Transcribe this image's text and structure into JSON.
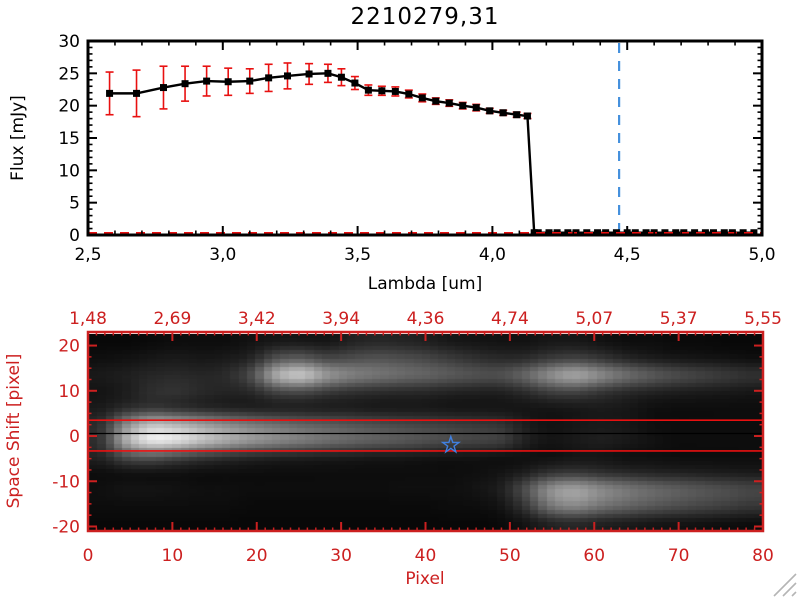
{
  "window": {
    "background": "#ffffff",
    "has_resize_grip": true
  },
  "colors": {
    "axis_black": "#000000",
    "axis_red": "#cc2020",
    "error_red": "#e81010",
    "dashed_red": "#e81010",
    "dashed_blue": "#4490dd",
    "star_blue": "#4080e0",
    "grip_gray": "#b5b5b5"
  },
  "chart_data": [
    {
      "type": "line",
      "title": "2210279,31",
      "xlabel": "Lambda [um]",
      "ylabel": "Flux [mJy]",
      "xlim": [
        2.5,
        5.0
      ],
      "ylim": [
        0,
        30
      ],
      "x_tick_labels": [
        "2,5",
        "3,0",
        "3,5",
        "4,0",
        "4,5",
        "5,0"
      ],
      "x_tick_values": [
        2.5,
        3.0,
        3.5,
        4.0,
        4.5,
        5.0
      ],
      "x_minor_step": 0.1,
      "y_tick_labels": [
        "0",
        "5",
        "10",
        "15",
        "20",
        "25",
        "30"
      ],
      "y_tick_values": [
        0,
        5,
        10,
        15,
        20,
        25,
        30
      ],
      "y_minor_step": 1,
      "grid": "off",
      "series": [
        {
          "name": "spectrum",
          "marker": "filled-square",
          "color": "#000000",
          "error_color": "#e81010",
          "x": [
            2.58,
            2.68,
            2.78,
            2.86,
            2.94,
            3.02,
            3.1,
            3.17,
            3.24,
            3.32,
            3.39,
            3.44,
            3.49,
            3.54,
            3.59,
            3.64,
            3.69,
            3.74,
            3.79,
            3.84,
            3.89,
            3.94,
            3.99,
            4.04,
            4.09,
            4.13,
            4.155,
            4.17,
            4.21,
            4.24,
            4.28,
            4.31,
            4.35,
            4.39,
            4.42,
            4.46,
            4.5,
            4.53,
            4.57,
            4.6,
            4.64,
            4.68,
            4.71,
            4.75,
            4.79,
            4.82,
            4.86,
            4.89,
            4.93,
            4.97
          ],
          "y": [
            21.9,
            21.9,
            22.8,
            23.4,
            23.8,
            23.7,
            23.8,
            24.3,
            24.6,
            24.9,
            25.0,
            24.4,
            23.5,
            22.4,
            22.3,
            22.2,
            21.8,
            21.2,
            20.7,
            20.4,
            20.0,
            19.7,
            19.2,
            18.9,
            18.6,
            18.4,
            0.35,
            0.35,
            0.35,
            0.35,
            0.35,
            0.35,
            0.35,
            0.35,
            0.35,
            0.35,
            0.35,
            0.35,
            0.35,
            0.35,
            0.35,
            0.35,
            0.35,
            0.35,
            0.35,
            0.35,
            0.35,
            0.35,
            0.35,
            0.35
          ],
          "yerr": [
            3.3,
            3.6,
            3.3,
            2.7,
            2.3,
            2.1,
            1.9,
            2.1,
            2.0,
            1.6,
            1.4,
            1.3,
            1.0,
            0.8,
            0.7,
            0.7,
            0.6,
            0.6,
            0.5,
            0.5,
            0.5,
            0.5,
            0.4,
            0.4,
            0.4,
            0.4,
            0,
            0,
            0,
            0,
            0,
            0,
            0,
            0,
            0,
            0,
            0,
            0,
            0,
            0,
            0,
            0,
            0,
            0,
            0,
            0,
            0,
            0,
            0,
            0
          ]
        }
      ],
      "zero_line": {
        "y": 0.3,
        "color": "#e81010",
        "style": "dashed"
      },
      "reference_line": {
        "x": 4.47,
        "color": "#4490dd",
        "style": "dashed"
      }
    },
    {
      "type": "heatmap",
      "xlabel": "Pixel",
      "ylabel": "Space Shift [pixel]",
      "axis_color": "#cc2020",
      "xlim": [
        0,
        80
      ],
      "ylim": [
        -21,
        23
      ],
      "x_tick_labels": [
        "0",
        "10",
        "20",
        "30",
        "40",
        "50",
        "60",
        "70",
        "80"
      ],
      "x_tick_values": [
        0,
        10,
        20,
        30,
        40,
        50,
        60,
        70,
        80
      ],
      "x_minor_step": 1,
      "y_tick_labels": [
        "20",
        "10",
        "0",
        "-10",
        "-20"
      ],
      "y_tick_values": [
        20,
        10,
        0,
        -10,
        -20
      ],
      "y_minor_step": 2.5,
      "top_axis_tick_labels": [
        "1,48",
        "2,69",
        "3,42",
        "3,94",
        "4,36",
        "4,74",
        "5,07",
        "5,37",
        "5,55"
      ],
      "aperture_lines": {
        "y_values": [
          3.5,
          -3.3
        ],
        "color": "#e81010"
      },
      "trace_line": {
        "y": 0.55,
        "color": "#000000"
      },
      "star_marker": {
        "x": 43,
        "y": -2,
        "color": "#4080e0"
      },
      "intensity_grid": {
        "cols": 27,
        "rows": 12,
        "note": "brightness 0-100, rows ordered top (+space shift) to bottom (-space shift), cols pixel 0 to 80",
        "values": [
          [
            3,
            3,
            4,
            5,
            5,
            5,
            7,
            9,
            9,
            8,
            13,
            15,
            14,
            12,
            9,
            8,
            7,
            7,
            9,
            9,
            7,
            5,
            5,
            4,
            4,
            3,
            3
          ],
          [
            6,
            7,
            9,
            10,
            9,
            10,
            14,
            32,
            36,
            28,
            30,
            33,
            31,
            28,
            23,
            19,
            16,
            17,
            23,
            26,
            21,
            15,
            11,
            9,
            8,
            7,
            6
          ],
          [
            10,
            12,
            15,
            16,
            15,
            17,
            30,
            70,
            82,
            62,
            52,
            47,
            43,
            40,
            36,
            33,
            32,
            42,
            58,
            68,
            56,
            45,
            37,
            31,
            27,
            23,
            20
          ],
          [
            8,
            11,
            18,
            20,
            16,
            14,
            16,
            28,
            30,
            24,
            20,
            18,
            17,
            16,
            14,
            13,
            13,
            18,
            26,
            28,
            22,
            17,
            14,
            12,
            11,
            10,
            9
          ],
          [
            10,
            16,
            20,
            17,
            14,
            12,
            11,
            11,
            11,
            10,
            10,
            9,
            9,
            9,
            8,
            8,
            8,
            8,
            8,
            9,
            10,
            9,
            6,
            5,
            5,
            5,
            5
          ],
          [
            18,
            55,
            75,
            70,
            62,
            54,
            48,
            43,
            39,
            36,
            33,
            30,
            28,
            26,
            24,
            22,
            20,
            11,
            7,
            9,
            10,
            9,
            6,
            5,
            5,
            5,
            5
          ],
          [
            20,
            72,
            96,
            92,
            80,
            70,
            62,
            56,
            51,
            46,
            42,
            39,
            36,
            33,
            30,
            28,
            26,
            13,
            8,
            10,
            12,
            10,
            7,
            5,
            5,
            5,
            5
          ],
          [
            14,
            30,
            34,
            28,
            22,
            18,
            15,
            13,
            12,
            11,
            10,
            9,
            9,
            8,
            7,
            7,
            6,
            6,
            6,
            8,
            8,
            6,
            6,
            5,
            5,
            5,
            5
          ],
          [
            5,
            6,
            6,
            6,
            5,
            5,
            5,
            5,
            5,
            5,
            5,
            5,
            5,
            5,
            5,
            6,
            8,
            12,
            20,
            22,
            19,
            16,
            14,
            13,
            12,
            11,
            10
          ],
          [
            6,
            8,
            8,
            7,
            6,
            6,
            5,
            5,
            5,
            5,
            5,
            5,
            6,
            6,
            6,
            8,
            12,
            32,
            58,
            65,
            55,
            48,
            42,
            38,
            34,
            31,
            28
          ],
          [
            5,
            5,
            5,
            5,
            5,
            5,
            4,
            4,
            4,
            4,
            4,
            4,
            4,
            4,
            5,
            5,
            8,
            22,
            48,
            55,
            46,
            40,
            35,
            31,
            28,
            25,
            22
          ],
          [
            3,
            3,
            3,
            3,
            3,
            3,
            3,
            3,
            3,
            3,
            3,
            3,
            3,
            3,
            3,
            3,
            4,
            8,
            14,
            16,
            13,
            11,
            9,
            8,
            7,
            6,
            5
          ]
        ]
      }
    }
  ]
}
